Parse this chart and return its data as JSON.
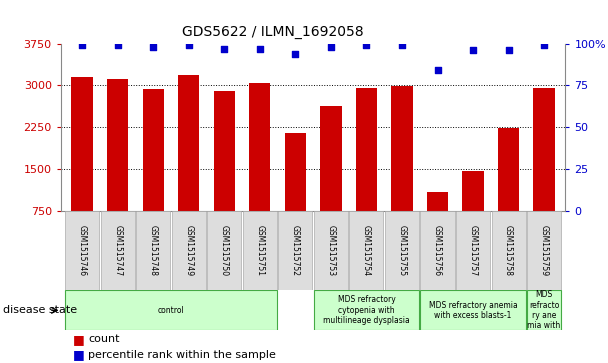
{
  "title": "GDS5622 / ILMN_1692058",
  "samples": [
    "GSM1515746",
    "GSM1515747",
    "GSM1515748",
    "GSM1515749",
    "GSM1515750",
    "GSM1515751",
    "GSM1515752",
    "GSM1515753",
    "GSM1515754",
    "GSM1515755",
    "GSM1515756",
    "GSM1515757",
    "GSM1515758",
    "GSM1515759"
  ],
  "counts": [
    3150,
    3120,
    2930,
    3180,
    2900,
    3040,
    2140,
    2620,
    2960,
    2980,
    1080,
    1460,
    2240,
    2960
  ],
  "percentile_ranks": [
    99,
    99,
    98,
    99,
    97,
    97,
    94,
    98,
    99,
    99,
    84,
    96,
    96,
    99
  ],
  "ylim_left": [
    750,
    3750
  ],
  "ylim_right": [
    0,
    100
  ],
  "yticks_left": [
    750,
    1500,
    2250,
    3000,
    3750
  ],
  "yticks_right": [
    0,
    25,
    50,
    75,
    100
  ],
  "bar_color": "#cc0000",
  "dot_color": "#0000cc",
  "disease_groups": [
    {
      "label": "control",
      "start": 0,
      "end": 6,
      "color": "#ccffcc"
    },
    {
      "label": "MDS refractory\ncytopenia with\nmultilineage dysplasia",
      "start": 7,
      "end": 10,
      "color": "#ccffcc"
    },
    {
      "label": "MDS refractory anemia\nwith excess blasts-1",
      "start": 10,
      "end": 13,
      "color": "#ccffcc"
    },
    {
      "label": "MDS\nrefracto\nry ane\nmia with",
      "start": 13,
      "end": 14,
      "color": "#ccffcc"
    }
  ],
  "xlabel_disease": "disease state",
  "legend_count": "count",
  "legend_percentile": "percentile rank within the sample",
  "tick_color_left": "#cc0000",
  "tick_color_right": "#0000cc",
  "bg_color": "#ffffff",
  "sample_box_color": "#dddddd",
  "sample_box_edge": "#aaaaaa"
}
